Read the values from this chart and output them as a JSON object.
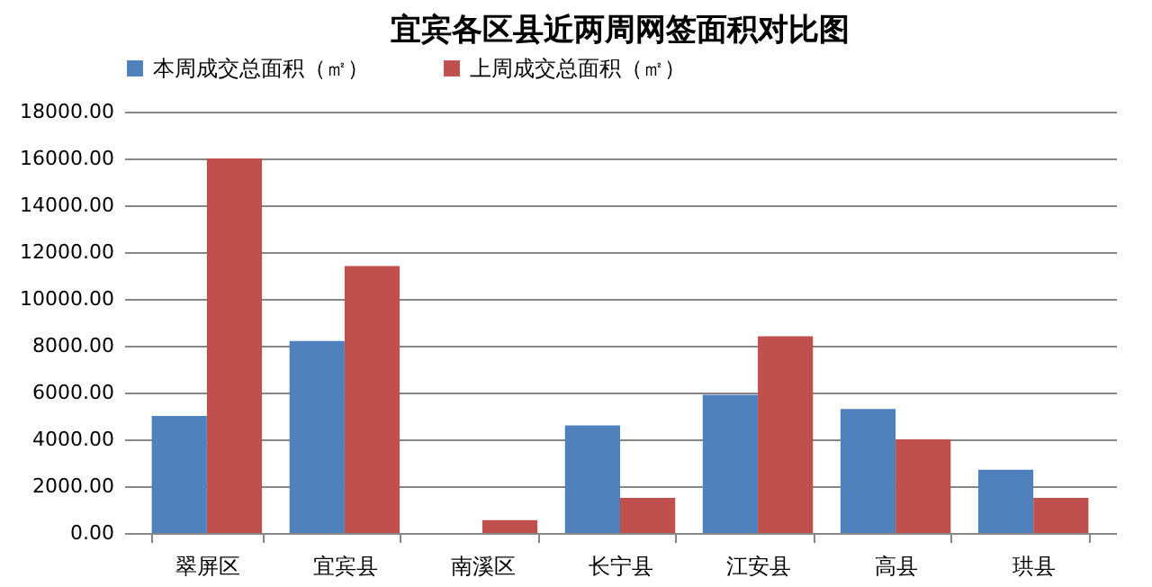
{
  "chart_data": {
    "type": "bar",
    "title": "宜宾各区县近两周网签面积对比图",
    "categories": [
      "翠屏区",
      "宜宾县",
      "南溪区",
      "长宁县",
      "江安县",
      "高县",
      "珙县"
    ],
    "series": [
      {
        "name": "本周成交总面积（㎡）",
        "color": "#4f81bd",
        "values": [
          5000,
          8200,
          0,
          4600,
          5900,
          5300,
          2700
        ]
      },
      {
        "name": "上周成交总面积（㎡）",
        "color": "#c0504d",
        "values": [
          16000,
          11400,
          550,
          1500,
          8400,
          4000,
          1500
        ]
      }
    ],
    "ylim": [
      0,
      18000
    ],
    "yticks": [
      {
        "value": 0,
        "label": "0.00"
      },
      {
        "value": 2000,
        "label": "2000.00"
      },
      {
        "value": 4000,
        "label": "4000.00"
      },
      {
        "value": 6000,
        "label": "6000.00"
      },
      {
        "value": 8000,
        "label": "8000.00"
      },
      {
        "value": 10000,
        "label": "10000.00"
      },
      {
        "value": 12000,
        "label": "12000.00"
      },
      {
        "value": 14000,
        "label": "14000.00"
      },
      {
        "value": 16000,
        "label": "16000.00"
      },
      {
        "value": 18000,
        "label": "18000.00"
      }
    ],
    "grid": "y",
    "legend": "top"
  }
}
